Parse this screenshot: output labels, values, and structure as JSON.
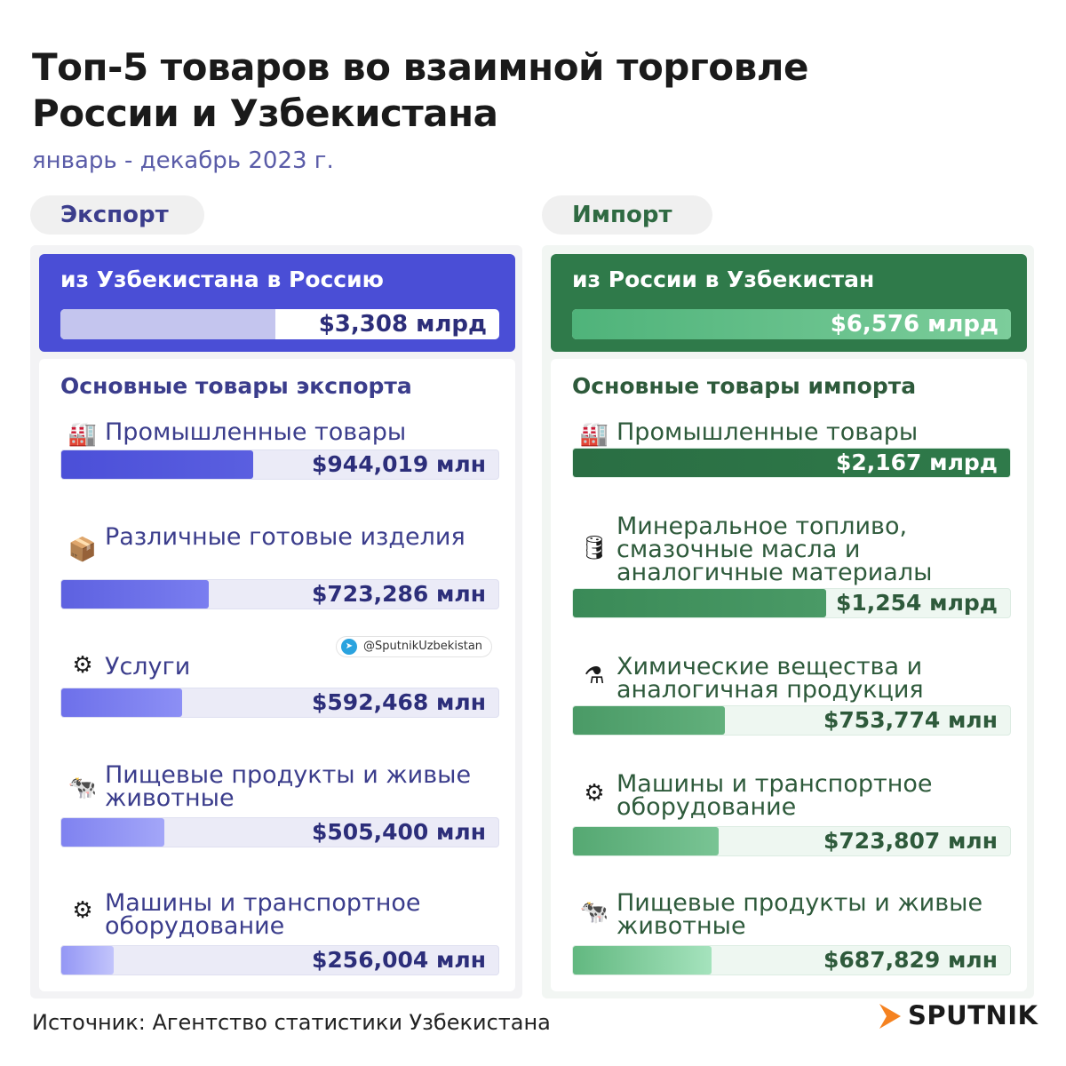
{
  "title_line1": "Топ-5 товаров во взаимной торговле",
  "title_line2": "России и Узбекистана",
  "subtitle": "январь - декабрь 2023 г.",
  "source": "Источник: Агентство статистики Узбекистана",
  "telegram": "@SputnikUzbekistan",
  "logo": "SPUTNIK",
  "colors": {
    "export_accent": "#4a4ed6",
    "import_accent": "#2f7a4a",
    "logo_orange": "#f58220"
  },
  "chart_data": [
    {
      "type": "bar",
      "tab": "Экспорт",
      "total_label": "из Узбекистана в Россию",
      "total_value": "$3,308 млрд",
      "total_fraction": 0.49,
      "list_title": "Основные товары экспорта",
      "categories": [
        "Промышленные товары",
        "Различные готовые изделия",
        "Услуги",
        "Пищевые продукты и живые животные",
        "Машины и транспортное оборудование"
      ],
      "values": [
        944.019,
        723.286,
        592.468,
        505.4,
        256.004
      ],
      "value_labels": [
        "$944,019 млн",
        "$723,286 млн",
        "$592,468 млн",
        "$505,400 млн",
        "$256,004 млн"
      ],
      "icons": [
        "factory-icon",
        "boxes-icon",
        "service-icon",
        "cow-icon",
        "tire-icon"
      ]
    },
    {
      "type": "bar",
      "tab": "Импорт",
      "total_label": "из России в Узбекистан",
      "total_value": "$6,576 млрд",
      "total_fraction": 1.0,
      "list_title": "Основные товары импорта",
      "categories": [
        "Промышленные товары",
        "Минеральное топливо, смазочные масла и аналогичные материалы",
        "Химические вещества и аналогичная продукция",
        "Машины и транспортное оборудование",
        "Пищевые продукты и живые животные"
      ],
      "values": [
        2167,
        1254,
        753.774,
        723.807,
        687.829
      ],
      "value_labels": [
        "$2,167 млрд",
        "$1,254 млрд",
        "$753,774 млн",
        "$723,807 млн",
        "$687,829 млн"
      ],
      "icons": [
        "factory-icon",
        "barrel-icon",
        "flask-icon",
        "tire-icon",
        "cow-icon"
      ]
    }
  ]
}
